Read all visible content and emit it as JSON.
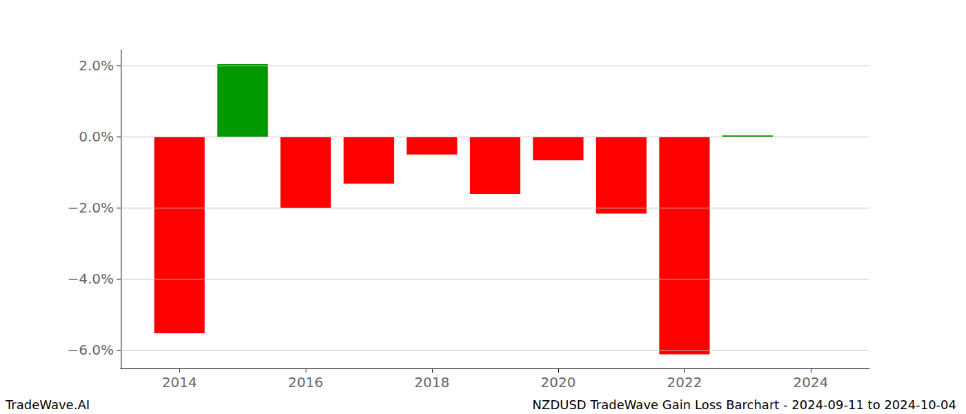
{
  "chart_data": {
    "type": "bar",
    "title": "NZDUSD TradeWave Gain Loss Barchart - 2024-09-11 to 2024-10-04",
    "annotations": [
      "TradeWave.AI"
    ],
    "x": [
      2014,
      2015,
      2016,
      2017,
      2018,
      2019,
      2020,
      2021,
      2022,
      2023
    ],
    "values": [
      -5.53,
      2.04,
      -2.0,
      -1.32,
      -0.5,
      -1.61,
      -0.66,
      -2.16,
      -6.12,
      0.04
    ],
    "colors": [
      "#ff0000",
      "#009900",
      "#ff0000",
      "#ff0000",
      "#ff0000",
      "#ff0000",
      "#ff0000",
      "#ff0000",
      "#ff0000",
      "#009900"
    ],
    "xlim": [
      2013.07,
      2024.93
    ],
    "xticks": [
      2014,
      2016,
      2018,
      2020,
      2022,
      2024
    ],
    "ylim": [
      -6.52,
      2.45
    ],
    "yticks": [
      {
        "value": -6,
        "label": "−6.0%"
      },
      {
        "value": -4,
        "label": "−4.0%"
      },
      {
        "value": -2,
        "label": "−2.0%"
      },
      {
        "value": 0,
        "label": "0.0%"
      },
      {
        "value": 2,
        "label": "2.0%"
      }
    ],
    "grid": true
  }
}
